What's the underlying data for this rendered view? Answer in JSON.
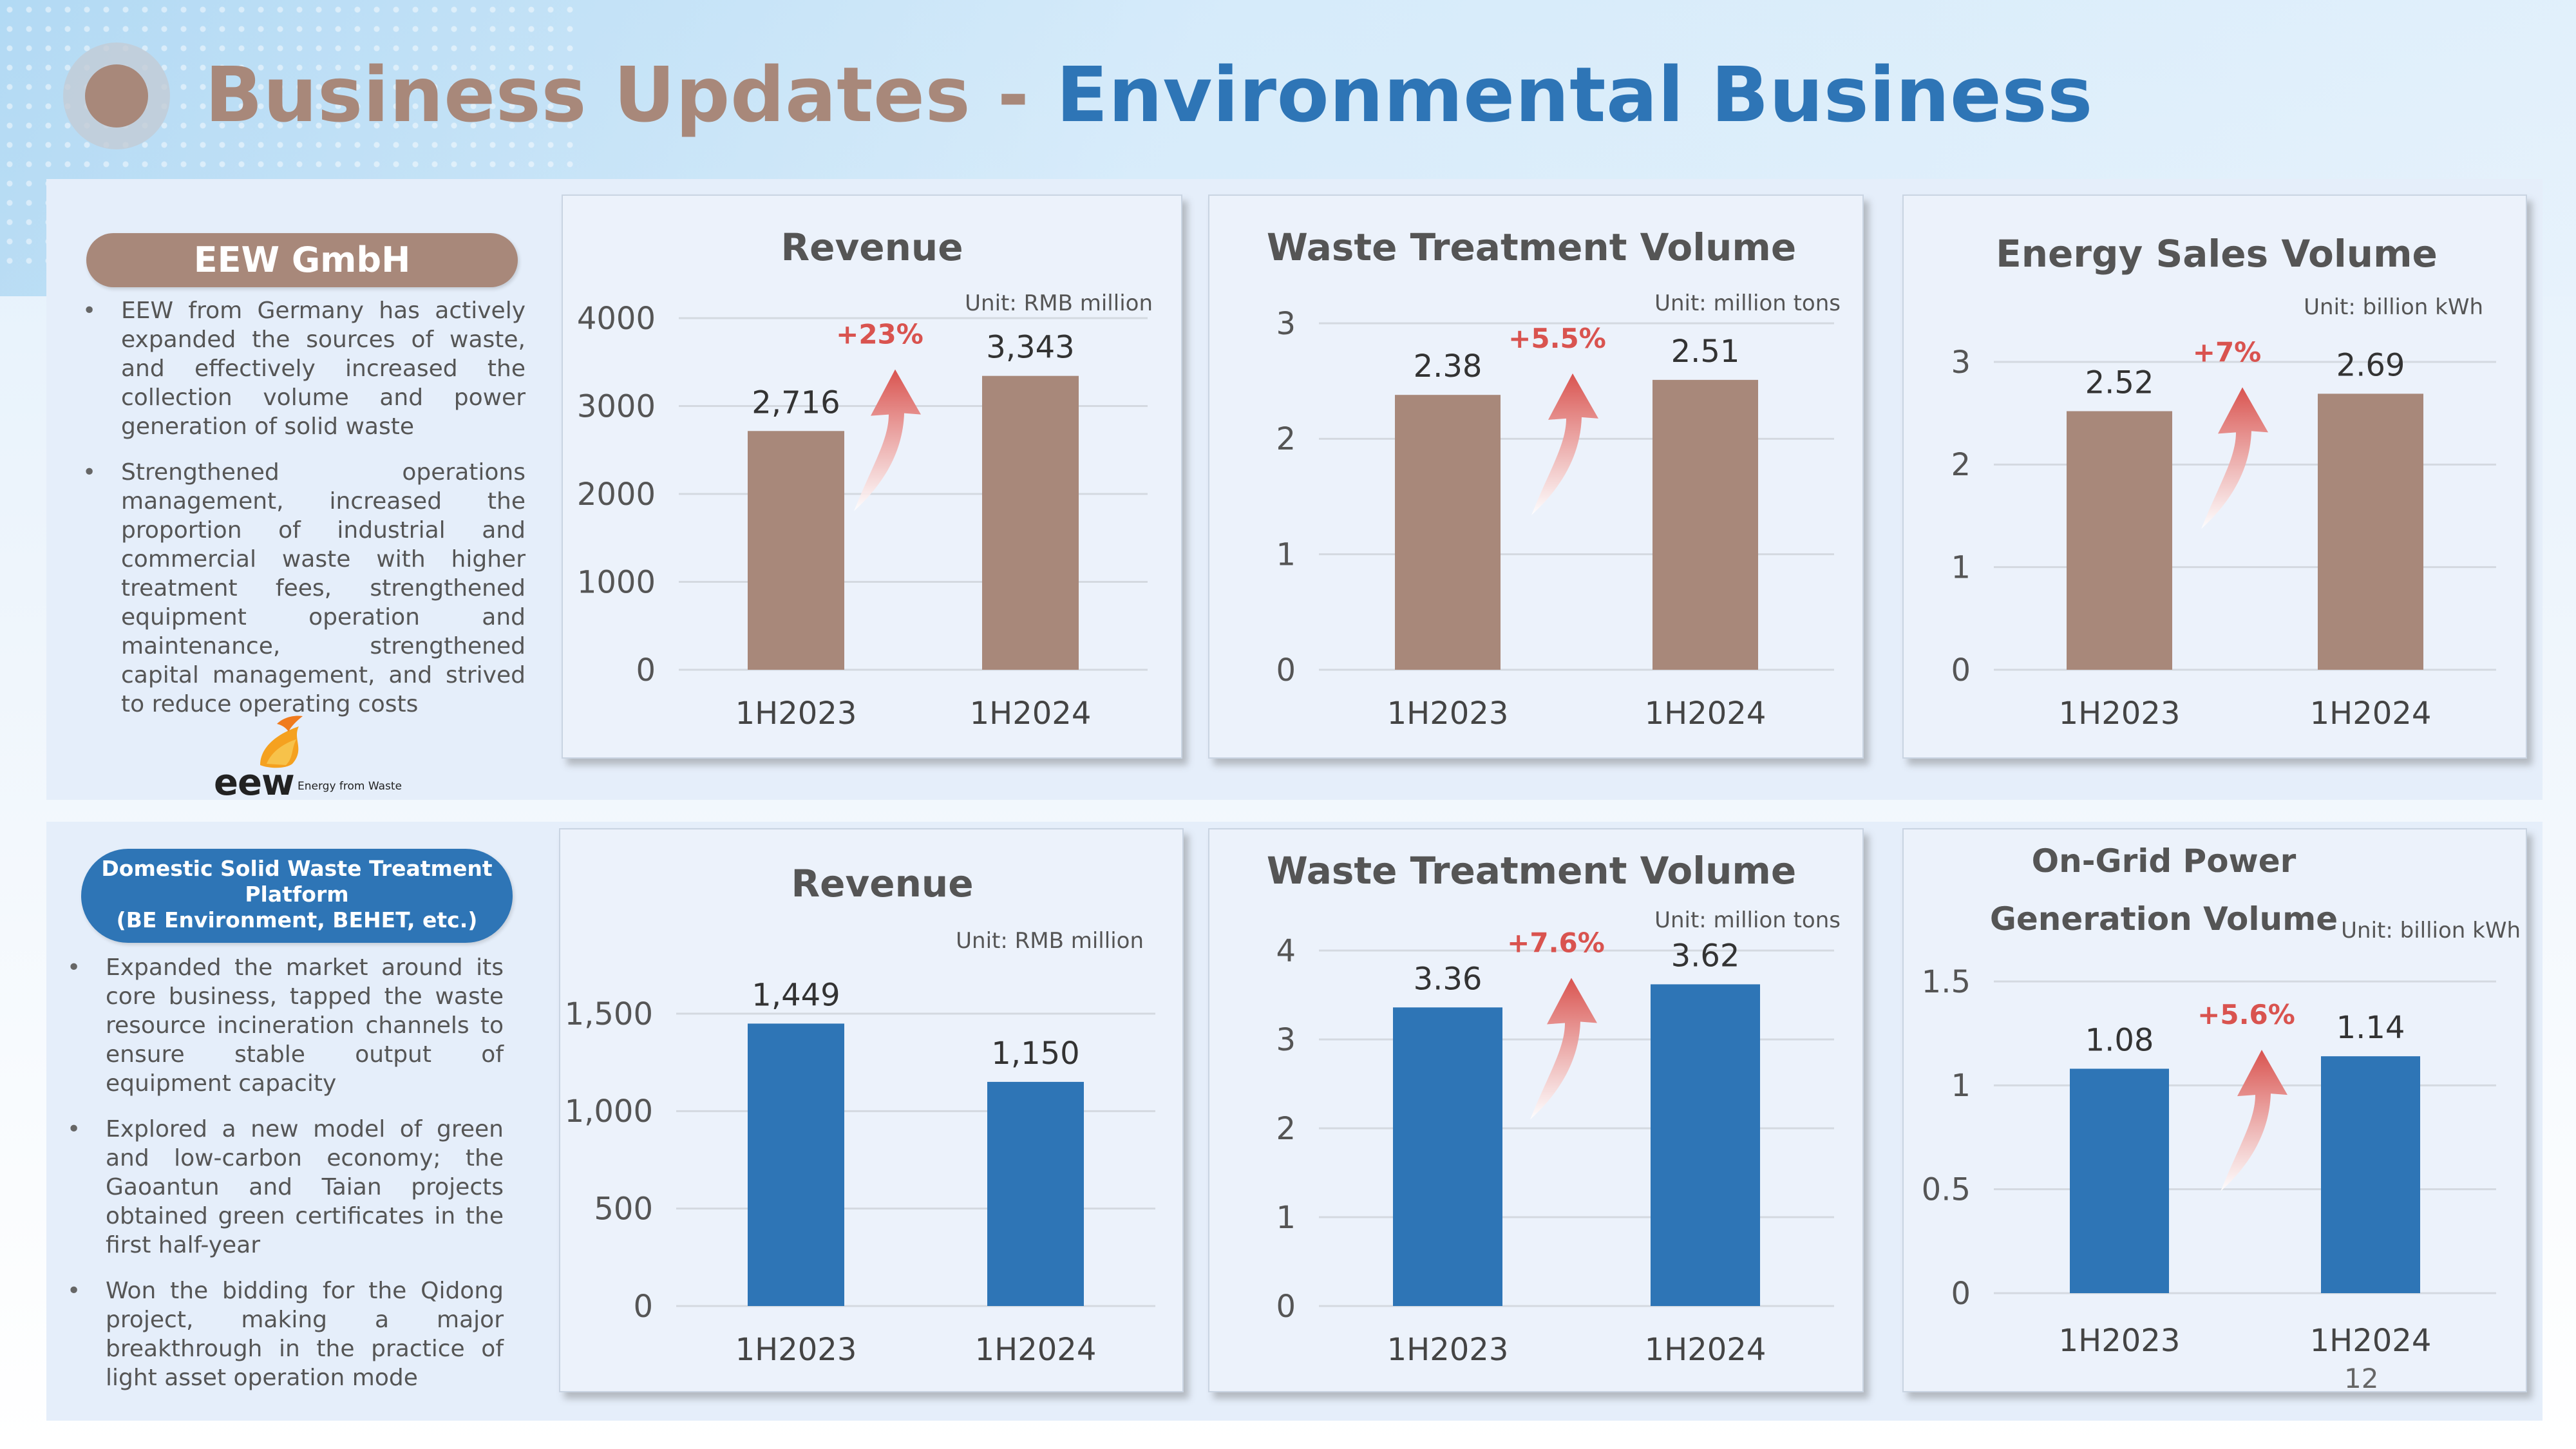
{
  "title": {
    "part1": "Business Updates - ",
    "part2": "Environmental Business"
  },
  "eew": {
    "header": "EEW GmbH",
    "bullets": [
      "EEW from Germany has actively expanded the sources of waste, and effectively increased the collection volume and power generation of solid waste",
      "Strengthened operations management, increased the proportion of industrial and commercial waste with higher treatment fees, strengthened equipment operation and maintenance, strengthened capital management, and strived to reduce operating costs"
    ],
    "logo_text": "eew",
    "logo_tagline": "Energy from Waste"
  },
  "domestic": {
    "header_lines": [
      "Domestic Solid Waste Treatment",
      "Platform",
      "(BE Environment, BEHET, etc.)"
    ],
    "bullets": [
      "Expanded the market around its core business, tapped the waste resource incineration channels to ensure stable output of equipment capacity",
      "Explored a new model of green and low-carbon economy; the Gaoantun and Taian projects obtained green certificates in the first half-year",
      "Won the bidding for the Qidong project, making a major breakthrough in the practice of light asset operation mode"
    ]
  },
  "page_number": "12",
  "colors": {
    "brown": "#a8887a",
    "blue": "#2e75b6",
    "growth": "#d9534f",
    "grid": "#d4d9e0"
  },
  "chart_data": [
    {
      "type": "bar",
      "id": "eew-revenue",
      "title": [
        "Revenue"
      ],
      "unit": "Unit: RMB million",
      "categories": [
        "1H2023",
        "1H2024"
      ],
      "values": [
        2716,
        3343
      ],
      "value_labels": [
        "2,716",
        "3,343"
      ],
      "yticks": [
        0,
        1000,
        2000,
        3000,
        4000
      ],
      "ytick_labels": [
        "0",
        "1000",
        "2000",
        "3000",
        "4000"
      ],
      "ylim": [
        0,
        4000
      ],
      "growth": "+23%",
      "color": "#a8887a",
      "grid": true
    },
    {
      "type": "bar",
      "id": "eew-waste",
      "title": [
        "Waste Treatment Volume"
      ],
      "unit": "Unit: million tons",
      "categories": [
        "1H2023",
        "1H2024"
      ],
      "values": [
        2.38,
        2.51
      ],
      "value_labels": [
        "2.38",
        "2.51"
      ],
      "yticks": [
        0,
        1,
        2,
        3
      ],
      "ytick_labels": [
        "0",
        "1",
        "2",
        "3"
      ],
      "ylim": [
        0,
        3
      ],
      "growth": "+5.5%",
      "color": "#a8887a",
      "grid": true
    },
    {
      "type": "bar",
      "id": "eew-energy",
      "title": [
        "Energy Sales Volume"
      ],
      "unit": "Unit: billion kWh",
      "categories": [
        "1H2023",
        "1H2024"
      ],
      "values": [
        2.52,
        2.69
      ],
      "value_labels": [
        "2.52",
        "2.69"
      ],
      "yticks": [
        0,
        1,
        2,
        3
      ],
      "ytick_labels": [
        "0",
        "1",
        "2",
        "3"
      ],
      "ylim": [
        0,
        3
      ],
      "growth": "+7%",
      "color": "#a8887a",
      "grid": true
    },
    {
      "type": "bar",
      "id": "dom-revenue",
      "title": [
        "Revenue"
      ],
      "unit": "Unit: RMB million",
      "categories": [
        "1H2023",
        "1H2024"
      ],
      "values": [
        1449,
        1150
      ],
      "value_labels": [
        "1,449",
        "1,150"
      ],
      "yticks": [
        0,
        500,
        1000,
        1500
      ],
      "ytick_labels": [
        "0",
        "500",
        "1,000",
        "1,500"
      ],
      "ylim": [
        0,
        1500
      ],
      "growth": "",
      "color": "#2e75b6",
      "grid": true
    },
    {
      "type": "bar",
      "id": "dom-waste",
      "title": [
        "Waste Treatment Volume"
      ],
      "unit": "Unit: million tons",
      "categories": [
        "1H2023",
        "1H2024"
      ],
      "values": [
        3.36,
        3.62
      ],
      "value_labels": [
        "3.36",
        "3.62"
      ],
      "yticks": [
        0,
        1,
        2,
        3,
        4
      ],
      "ytick_labels": [
        "0",
        "1",
        "2",
        "3",
        "4"
      ],
      "ylim": [
        0,
        4
      ],
      "growth": "+7.6%",
      "color": "#2e75b6",
      "grid": true
    },
    {
      "type": "bar",
      "id": "dom-power",
      "title": [
        "On-Grid Power",
        "Generation Volume"
      ],
      "unit": "Unit: billion kWh",
      "categories": [
        "1H2023",
        "1H2024"
      ],
      "values": [
        1.08,
        1.14
      ],
      "value_labels": [
        "1.08",
        "1.14"
      ],
      "yticks": [
        0,
        0.5,
        1,
        1.5
      ],
      "ytick_labels": [
        "0",
        "0.5",
        "1",
        "1.5"
      ],
      "ylim": [
        0,
        1.5
      ],
      "growth": "+5.6%",
      "color": "#2e75b6",
      "grid": true
    }
  ]
}
